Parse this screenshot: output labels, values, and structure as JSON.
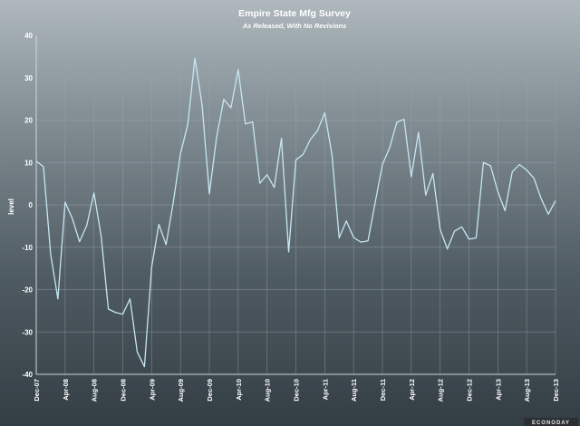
{
  "brand": {
    "logo_text": "ECONODAY"
  },
  "chart_data": {
    "type": "line",
    "title": "Empire State Mfg Survey",
    "subtitle": "As Released, With No Revisions",
    "ylabel": "level",
    "xlabel": "",
    "ylim": [
      -40,
      40
    ],
    "yticks": [
      40,
      30,
      20,
      10,
      0,
      -10,
      -20,
      -30,
      -40
    ],
    "xtick_labels": [
      "Dec-07",
      "Apr-08",
      "Aug-08",
      "Dec-08",
      "Apr-09",
      "Aug-09",
      "Dec-09",
      "Apr-10",
      "Aug-10",
      "Dec-10",
      "Apr-11",
      "Aug-11",
      "Dec-11",
      "Apr-12",
      "Aug-12",
      "Dec-12",
      "Apr-13",
      "Aug-13",
      "Dec-13"
    ],
    "grid": true,
    "line_color": "#c7e6f2",
    "series": [
      {
        "x": [
          "Dec-07",
          "Jan-08",
          "Feb-08",
          "Mar-08",
          "Apr-08",
          "May-08",
          "Jun-08",
          "Jul-08",
          "Aug-08",
          "Sep-08",
          "Oct-08",
          "Nov-08",
          "Dec-08",
          "Jan-09",
          "Feb-09",
          "Mar-09",
          "Apr-09",
          "May-09",
          "Jun-09",
          "Jul-09",
          "Aug-09",
          "Sep-09",
          "Oct-09",
          "Nov-09",
          "Dec-09",
          "Jan-10",
          "Feb-10",
          "Mar-10",
          "Apr-10",
          "May-10",
          "Jun-10",
          "Jul-10",
          "Aug-10",
          "Sep-10",
          "Oct-10",
          "Nov-10",
          "Dec-10",
          "Jan-11",
          "Feb-11",
          "Mar-11",
          "Apr-11",
          "May-11",
          "Jun-11",
          "Jul-11",
          "Aug-11",
          "Sep-11",
          "Oct-11",
          "Nov-11",
          "Dec-11",
          "Jan-12",
          "Feb-12",
          "Mar-12",
          "Apr-12",
          "May-12",
          "Jun-12",
          "Jul-12",
          "Aug-12",
          "Sep-12",
          "Oct-12",
          "Nov-12",
          "Dec-12",
          "Jan-13",
          "Feb-13",
          "Mar-13",
          "Apr-13",
          "May-13",
          "Jun-13",
          "Jul-13",
          "Aug-13",
          "Sep-13",
          "Oct-13",
          "Nov-13",
          "Dec-13"
        ],
        "values": [
          10.3,
          9.0,
          -11.7,
          -22.2,
          0.6,
          -3.2,
          -8.7,
          -4.9,
          2.8,
          -7.4,
          -24.6,
          -25.4,
          -25.8,
          -22.2,
          -34.7,
          -38.2,
          -14.7,
          -4.6,
          -9.4,
          0.6,
          12.1,
          18.9,
          34.6,
          23.5,
          2.6,
          15.9,
          24.9,
          22.9,
          31.9,
          19.1,
          19.6,
          5.1,
          7.1,
          4.1,
          15.7,
          -11.1,
          10.6,
          11.9,
          15.4,
          17.5,
          21.7,
          11.9,
          -7.8,
          -3.8,
          -7.7,
          -8.8,
          -8.5,
          0.6,
          9.5,
          13.5,
          19.5,
          20.2,
          6.6,
          17.1,
          2.3,
          7.4,
          -5.8,
          -10.4,
          -6.2,
          -5.2,
          -8.1,
          -7.8,
          10.0,
          9.2,
          3.1,
          -1.4,
          7.8,
          9.5,
          8.2,
          6.3,
          1.5,
          -2.2,
          0.98
        ]
      }
    ]
  }
}
